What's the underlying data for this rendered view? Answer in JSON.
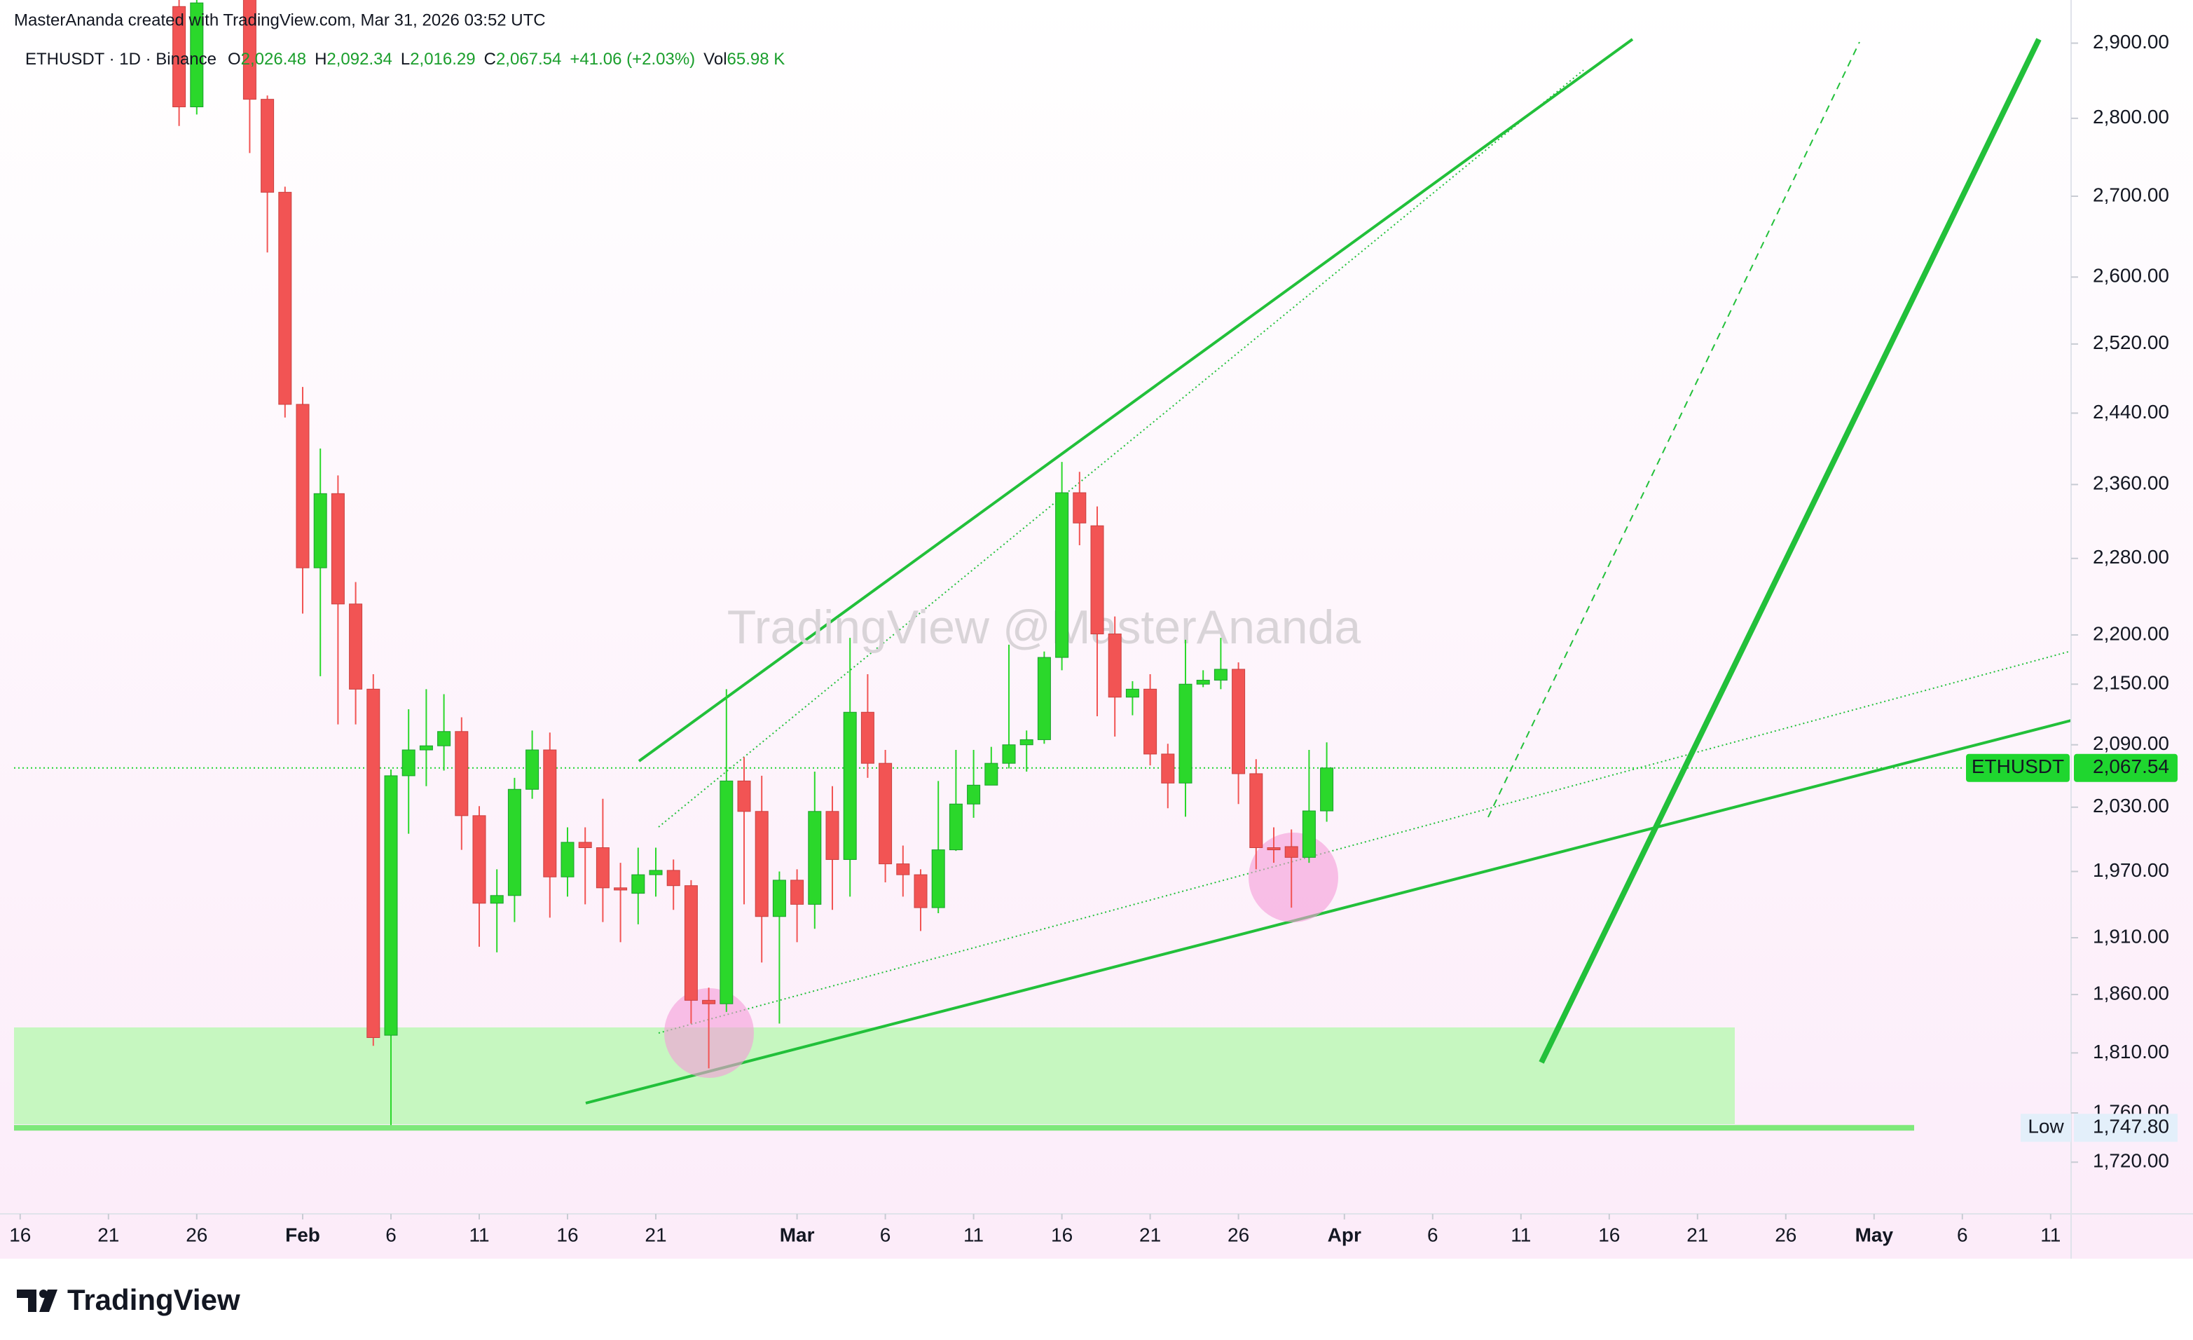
{
  "header": {
    "credit": "MasterAnanda created with TradingView.com, Mar 31, 2026 03:52 UTC"
  },
  "chart_data": {
    "type": "candlestick",
    "legend": {
      "symbol": "ETHUSDT · 1D · Binance",
      "ohlc": [
        {
          "key": "O",
          "value": "2,026.48"
        },
        {
          "key": "H",
          "value": "2,092.34"
        },
        {
          "key": "L",
          "value": "2,016.29"
        },
        {
          "key": "C",
          "value": "2,067.54"
        }
      ],
      "change": "+41.06 (+2.03%)",
      "volume_key": "Vol",
      "volume": "65.98 K"
    },
    "watermark": "TradingView @MasterAnanda",
    "x": [
      "Jan 25",
      "Jan 26",
      "Jan 29",
      "Jan 30",
      "Jan 31",
      "Feb 1",
      "Feb 2",
      "Feb 3",
      "Feb 4",
      "Feb 5",
      "Feb 6",
      "Feb 7",
      "Feb 8",
      "Feb 9",
      "Feb 10",
      "Feb 11",
      "Feb 12",
      "Feb 13",
      "Feb 14",
      "Feb 15",
      "Feb 16",
      "Feb 17",
      "Feb 18",
      "Feb 19",
      "Feb 20",
      "Feb 21",
      "Feb 22",
      "Feb 23",
      "Feb 24",
      "Feb 25",
      "Feb 26",
      "Feb 27",
      "Feb 28",
      "Mar 1",
      "Mar 2",
      "Mar 3",
      "Mar 4",
      "Mar 5",
      "Mar 6",
      "Mar 7",
      "Mar 8",
      "Mar 9",
      "Mar 10",
      "Mar 11",
      "Mar 12",
      "Mar 13",
      "Mar 14",
      "Mar 15",
      "Mar 16",
      "Mar 17",
      "Mar 18",
      "Mar 19",
      "Mar 20",
      "Mar 21",
      "Mar 22",
      "Mar 23",
      "Mar 24",
      "Mar 25",
      "Mar 26",
      "Mar 27",
      "Mar 28",
      "Mar 29",
      "Mar 30",
      "Mar 31"
    ],
    "open": [
      2950,
      2815,
      2990,
      2825,
      2705,
      2450,
      2270,
      2350,
      2232,
      2145,
      1825,
      2060,
      2085,
      2089,
      2103,
      2022,
      1941,
      1948,
      2047,
      2085,
      1965,
      1997,
      1992,
      1955,
      1950,
      1967,
      1971,
      1957,
      1855,
      1852,
      2055,
      2026,
      1929,
      1962,
      1940,
      2026,
      1981,
      2122,
      2072,
      1977,
      1967,
      1937,
      1990,
      2033,
      2051,
      2072,
      2090,
      2095,
      2177,
      2351,
      2315,
      2201,
      2137,
      2145,
      2081,
      2053,
      2150,
      2154,
      2165,
      2062,
      1992,
      1993,
      1983,
      2026.48
    ],
    "high": [
      2990,
      2990,
      3010,
      2830,
      2712,
      2470,
      2400,
      2370,
      2255,
      2160,
      2066,
      2125,
      2145,
      2140,
      2117,
      2031,
      1972,
      2058,
      2104,
      2102,
      2011,
      2011,
      2038,
      1978,
      1992,
      1992,
      1981,
      1962,
      1866,
      2145,
      2078,
      2060,
      1970,
      1972,
      2064,
      2050,
      2197,
      2160,
      2085,
      1994,
      1972,
      2055,
      2085,
      2085,
      2088,
      2190,
      2104,
      2183,
      2385,
      2374,
      2336,
      2219,
      2153,
      2160,
      2091,
      2195,
      2164,
      2197,
      2172,
      2076,
      2011,
      2009,
      2085,
      2092.34
    ],
    "low": [
      2790,
      2805,
      2755,
      2630,
      2435,
      2222,
      2158,
      2110,
      2110,
      1816,
      1747.8,
      2005,
      2050,
      2065,
      1990,
      1902,
      1897,
      1924,
      2038,
      1928,
      1947,
      1940,
      1924,
      1906,
      1922,
      1947,
      1935,
      1835,
      1797,
      1845,
      1940,
      1888,
      1835,
      1906,
      1918,
      1935,
      1947,
      2058,
      1960,
      1947,
      1916,
      1932,
      1989,
      2020,
      2051,
      2067,
      2064,
      2091,
      2164,
      2294,
      2118,
      2098,
      2119,
      2070,
      2029,
      2021,
      2147,
      2145,
      2033,
      1972,
      1978,
      1937,
      1978,
      2016.29
    ],
    "close": [
      2815,
      2955,
      2825,
      2705,
      2450,
      2270,
      2350,
      2232,
      2145,
      1823,
      2060,
      2085,
      2089,
      2103,
      2022,
      1941,
      1948,
      2047,
      2085,
      1965,
      1997,
      1992,
      1955,
      1953,
      1967,
      1971,
      1957,
      1855,
      1852,
      2055,
      2026,
      1929,
      1962,
      1940,
      2026,
      1981,
      2122,
      2072,
      1977,
      1967,
      1937,
      1990,
      2033,
      2051,
      2072,
      2090,
      2095,
      2177,
      2351,
      2318,
      2201,
      2137,
      2145,
      2081,
      2053,
      2150,
      2154,
      2165,
      2062,
      1992,
      1990,
      1983,
      2026.48,
      2067.54
    ],
    "up_color": "#2bd82b",
    "down_color": "#f25454",
    "xlim": [
      "Jan 15",
      "May 12"
    ],
    "xticks": [
      {
        "value": "Jan 16",
        "label": "16"
      },
      {
        "value": "Jan 21",
        "label": "21"
      },
      {
        "value": "Jan 26",
        "label": "26"
      },
      {
        "value": "Feb 1",
        "label": "Feb"
      },
      {
        "value": "Feb 6",
        "label": "6"
      },
      {
        "value": "Feb 11",
        "label": "11"
      },
      {
        "value": "Feb 16",
        "label": "16"
      },
      {
        "value": "Feb 21",
        "label": "21"
      },
      {
        "value": "Mar 1",
        "label": "Mar"
      },
      {
        "value": "Mar 6",
        "label": "6"
      },
      {
        "value": "Mar 11",
        "label": "11"
      },
      {
        "value": "Mar 16",
        "label": "16"
      },
      {
        "value": "Mar 21",
        "label": "21"
      },
      {
        "value": "Mar 26",
        "label": "26"
      },
      {
        "value": "Apr 1",
        "label": "Apr"
      },
      {
        "value": "Apr 6",
        "label": "6"
      },
      {
        "value": "Apr 11",
        "label": "11"
      },
      {
        "value": "Apr 16",
        "label": "16"
      },
      {
        "value": "Apr 21",
        "label": "21"
      },
      {
        "value": "Apr 26",
        "label": "26"
      },
      {
        "value": "May 1",
        "label": "May"
      },
      {
        "value": "May 6",
        "label": "6"
      },
      {
        "value": "May 11",
        "label": "11"
      }
    ],
    "ylim": [
      1679,
      2959
    ],
    "log_scale": true,
    "yticks": [
      {
        "value": 2900,
        "label": "2,900.00"
      },
      {
        "value": 2800,
        "label": "2,800.00"
      },
      {
        "value": 2700,
        "label": "2,700.00"
      },
      {
        "value": 2600,
        "label": "2,600.00"
      },
      {
        "value": 2520,
        "label": "2,520.00"
      },
      {
        "value": 2440,
        "label": "2,440.00"
      },
      {
        "value": 2360,
        "label": "2,360.00"
      },
      {
        "value": 2280,
        "label": "2,280.00"
      },
      {
        "value": 2200,
        "label": "2,200.00"
      },
      {
        "value": 2150,
        "label": "2,150.00"
      },
      {
        "value": 2090,
        "label": "2,090.00"
      },
      {
        "value": 2030,
        "label": "2,030.00"
      },
      {
        "value": 1970,
        "label": "1,970.00"
      },
      {
        "value": 1910,
        "label": "1,910.00"
      },
      {
        "value": 1860,
        "label": "1,860.00"
      },
      {
        "value": 1810,
        "label": "1,810.00"
      },
      {
        "value": 1760,
        "label": "1,760.00"
      },
      {
        "value": 1720,
        "label": "1,720.00"
      }
    ],
    "price_line": {
      "name": "ETHUSDT",
      "value": 2067.54,
      "label": "2,067.54",
      "color": "#1fd62f"
    },
    "low_line": {
      "name": "Low",
      "value": 1747.8,
      "label": "1,747.80",
      "color": "#7ee87a"
    }
  },
  "footer": {
    "brand": "TradingView"
  }
}
